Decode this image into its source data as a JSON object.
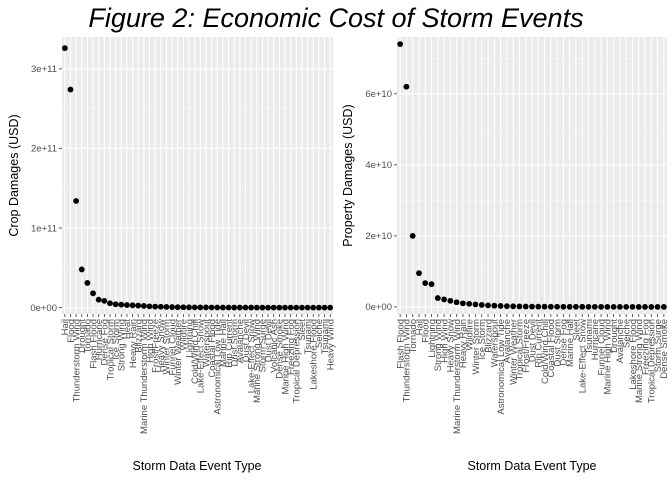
{
  "title": "Figure 2: Economic Cost of Storm Events",
  "chart_data": [
    {
      "type": "scatter",
      "xlabel": "Storm Data Event Type",
      "ylabel": "Crop Damages (USD)",
      "ylim": [
        -8000000000,
        340000000000
      ],
      "yticks": [
        0,
        100000000000,
        200000000000,
        300000000000
      ],
      "ytick_labels": [
        "0e+00",
        "1e+11",
        "2e+11",
        "3e+11"
      ],
      "grid": true,
      "categories": [
        "Hail",
        "Flood",
        "Thunderstorm Wind",
        "Drought",
        "Tornado",
        "Flash Flood",
        "Hurricane",
        "Dense Fog",
        "Tropical Storm",
        "Ice Storm",
        "Strong Wind",
        "Heat",
        "Heavy Rain",
        "Blizzard",
        "Marine Thunderstorm Wind",
        "High Wind",
        "Frost/Freeze",
        "Heavy Snow",
        "Winter Storm",
        "Funnel Cloud",
        "Winter Weather",
        "Wildfire",
        "Lightning",
        "Cold/Wind Chill",
        "Lake-Effect Snow",
        "Waterspout",
        "Coastal Flood",
        "Astronomical Low Tide",
        "Marine Hail",
        "Rip Current",
        "Dust Storm",
        "Avalanche",
        "Dust Devil",
        "Lake-Effect Snow",
        "Marine Strong Wind",
        "Storm Surge",
        "Dust Devil",
        "Volcanic Ash",
        "Dense Smoke",
        "Marine High Wind",
        "Freezing Fog",
        "Tropical Depression",
        "Sleet",
        "Tsunami",
        "Lakeshore Flood",
        "Seiche",
        "Tsunami",
        "Heavy Wind"
      ],
      "values": [
        326000000000,
        274000000000,
        134000000000,
        48000000000,
        31000000000,
        18000000000,
        10000000000,
        8500000000,
        5500000000,
        4200000000,
        3700000000,
        3200000000,
        2900000000,
        2600000000,
        2100000000,
        1600000000,
        1300000000,
        1100000000,
        900000000,
        700000000,
        550000000,
        450000000,
        380000000,
        320000000,
        270000000,
        230000000,
        200000000,
        170000000,
        145000000,
        120000000,
        100000000,
        85000000,
        70000000,
        60000000,
        50000000,
        42000000,
        35000000,
        30000000,
        25000000,
        20000000,
        16000000,
        13000000,
        10000000,
        8000000,
        6000000,
        4000000,
        2000000,
        1000000
      ]
    },
    {
      "type": "scatter",
      "xlabel": "Storm Data Event Type",
      "ylabel": "Property Damages (USD)",
      "ylim": [
        -2000000000,
        76000000000
      ],
      "yticks": [
        0,
        20000000000,
        40000000000,
        60000000000
      ],
      "ytick_labels": [
        "0e+00",
        "2e+10",
        "4e+10",
        "6e+10"
      ],
      "grid": true,
      "categories": [
        "Flash Flood",
        "Thunderstorm Wind",
        "Tornado",
        "Hail",
        "Flood",
        "Lightning",
        "Strong Wind",
        "High Wind",
        "Heavy Snow",
        "Marine Thunderstorm Wind",
        "Heavy Rain",
        "Wildfire",
        "Winter Storm",
        "Ice Storm",
        "Blizzard",
        "Waterspout",
        "Astronomical Low Tide",
        "Avalanche",
        "Winter Weather",
        "Tropical Storm",
        "Frost/Freeze",
        "Dust Devil",
        "Rip Current",
        "Cold/Wind Chill",
        "Coastal Flood",
        "Dust Storm",
        "Dense Fog",
        "Marine Hail",
        "Sleet",
        "Lake-Effect Snow",
        "Tsunami",
        "Hurricane",
        "Funnel Cloud",
        "Marine High Wind",
        "Drought",
        "Avalanche",
        "Seiche",
        "Lakeshore Flood",
        "Marine Strong Wind",
        "Freezing Fog",
        "Tropical Depression",
        "Storm Surge",
        "Dense Smoke"
      ],
      "values": [
        74000000000,
        62000000000,
        20000000000,
        9500000000,
        6700000000,
        6400000000,
        2500000000,
        2100000000,
        1700000000,
        1300000000,
        1000000000,
        850000000,
        700000000,
        550000000,
        430000000,
        340000000,
        270000000,
        210000000,
        170000000,
        135000000,
        105000000,
        85000000,
        70000000,
        58000000,
        48000000,
        40000000,
        33000000,
        27000000,
        22000000,
        18000000,
        15000000,
        12000000,
        10000000,
        8000000,
        6500000,
        5000000,
        4000000,
        3000000,
        2200000,
        1600000,
        1100000,
        700000,
        300000
      ]
    }
  ]
}
